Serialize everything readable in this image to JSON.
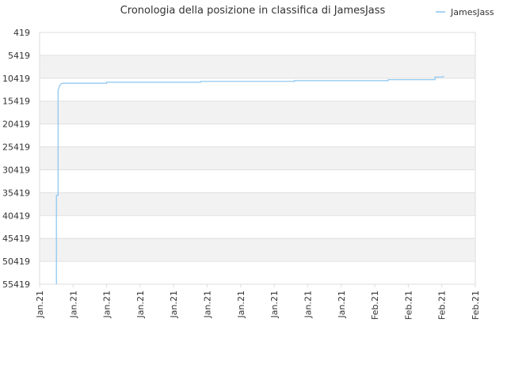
{
  "chart_data": {
    "type": "line",
    "title": "Cronologia della posizione in classifica di JamesJass",
    "xlabel": "",
    "ylabel": "",
    "y_reversed": true,
    "ylim": [
      55419,
      419
    ],
    "yticks": [
      419,
      5419,
      10419,
      15419,
      20419,
      25419,
      30419,
      35419,
      40419,
      45419,
      50419,
      55419
    ],
    "xticks": [
      "Jan.21",
      "Jan.21",
      "Jan.21",
      "Jan.21",
      "Jan.21",
      "Jan.21",
      "Jan.21",
      "Jan.21",
      "Jan.21",
      "Jan.21",
      "Feb.21",
      "Feb.21",
      "Feb.21",
      "Feb.21"
    ],
    "grid": "horizontal bands",
    "legend_position": "top-right",
    "colors": {
      "series": "#88c4f0",
      "band": "#f2f2f2",
      "grid": "#e0e0e0",
      "border": "#dddddd"
    },
    "series": [
      {
        "name": "JamesJass",
        "x": [
          0.5,
          0.5,
          0.55,
          0.55,
          0.6,
          0.65,
          0.7,
          2.0,
          2.0,
          4.8,
          4.8,
          7.6,
          7.6,
          10.4,
          10.4,
          11.8,
          11.8,
          12.0,
          12.05,
          12.05
        ],
        "y": [
          55419,
          36000,
          36000,
          13000,
          12000,
          11600,
          11500,
          11500,
          11300,
          11300,
          11100,
          11100,
          10950,
          10950,
          10750,
          10750,
          10150,
          10150,
          10050,
          9900
        ]
      }
    ]
  }
}
